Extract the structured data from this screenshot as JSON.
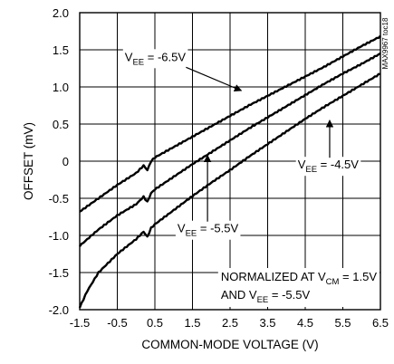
{
  "chart_data": {
    "type": "line",
    "xlabel": "COMMON-MODE VOLTAGE (V)",
    "ylabel": "OFFSET (mV)",
    "xlim": [
      -1.5,
      6.5
    ],
    "ylim": [
      -2.0,
      2.0
    ],
    "x_ticks": [
      "-1.5",
      "-0.5",
      "0.5",
      "1.5",
      "2.5",
      "3.5",
      "4.5",
      "5.5",
      "6.5"
    ],
    "y_ticks": [
      "2.0",
      "1.5",
      "1.0",
      "0.5",
      "0",
      "-0.5",
      "-1.0",
      "-1.5",
      "-2.0"
    ],
    "grid": true,
    "watermark": "MAX9967 toc18",
    "series": [
      {
        "key": "vee_6_5",
        "points": [
          [
            -1.5,
            -0.68
          ],
          [
            -1.0,
            -0.5
          ],
          [
            -0.5,
            -0.32
          ],
          [
            0.0,
            -0.16
          ],
          [
            0.2,
            -0.06
          ],
          [
            0.3,
            -0.12
          ],
          [
            0.4,
            0.0
          ],
          [
            0.5,
            0.05
          ],
          [
            1.0,
            0.19
          ],
          [
            1.5,
            0.33
          ],
          [
            2.0,
            0.47
          ],
          [
            2.5,
            0.61
          ],
          [
            3.0,
            0.75
          ],
          [
            3.5,
            0.88
          ],
          [
            4.0,
            1.01
          ],
          [
            4.5,
            1.14
          ],
          [
            5.0,
            1.27
          ],
          [
            5.5,
            1.41
          ],
          [
            6.0,
            1.55
          ],
          [
            6.5,
            1.68
          ]
        ]
      },
      {
        "key": "vee_5_5",
        "points": [
          [
            -1.5,
            -1.14
          ],
          [
            -1.0,
            -0.92
          ],
          [
            -0.5,
            -0.73
          ],
          [
            0.0,
            -0.58
          ],
          [
            0.2,
            -0.48
          ],
          [
            0.3,
            -0.55
          ],
          [
            0.4,
            -0.43
          ],
          [
            0.5,
            -0.38
          ],
          [
            1.0,
            -0.21
          ],
          [
            1.5,
            -0.04
          ],
          [
            2.0,
            0.12
          ],
          [
            2.5,
            0.28
          ],
          [
            3.0,
            0.44
          ],
          [
            3.5,
            0.59
          ],
          [
            4.0,
            0.74
          ],
          [
            4.5,
            0.89
          ],
          [
            5.0,
            1.04
          ],
          [
            5.5,
            1.18
          ],
          [
            6.0,
            1.31
          ],
          [
            6.5,
            1.45
          ]
        ]
      },
      {
        "key": "vee_4_5",
        "points": [
          [
            -1.5,
            -1.97
          ],
          [
            -1.3,
            -1.75
          ],
          [
            -1.0,
            -1.5
          ],
          [
            -0.5,
            -1.25
          ],
          [
            0.0,
            -1.05
          ],
          [
            0.2,
            -0.95
          ],
          [
            0.3,
            -1.02
          ],
          [
            0.4,
            -0.9
          ],
          [
            0.5,
            -0.85
          ],
          [
            1.0,
            -0.66
          ],
          [
            1.5,
            -0.47
          ],
          [
            2.0,
            -0.29
          ],
          [
            2.5,
            -0.12
          ],
          [
            3.0,
            0.06
          ],
          [
            3.5,
            0.23
          ],
          [
            4.0,
            0.4
          ],
          [
            4.5,
            0.57
          ],
          [
            5.0,
            0.73
          ],
          [
            5.5,
            0.88
          ],
          [
            6.0,
            1.03
          ],
          [
            6.5,
            1.18
          ]
        ]
      }
    ],
    "annotations": [
      {
        "key": "a65",
        "pre": "V",
        "sub": "EE",
        "post": " = -6.5V",
        "x": -0.3,
        "y": 1.35,
        "tx": 2.8,
        "ty": 0.95
      },
      {
        "key": "a45",
        "pre": "V",
        "sub": "EE",
        "post": " = -4.5V",
        "x": 4.3,
        "y": -0.1,
        "tx": 5.15,
        "ty": 0.55
      },
      {
        "key": "a55",
        "pre": "V",
        "sub": "EE",
        "post": " = -5.5V",
        "x": 1.1,
        "y": -0.96,
        "tx": 1.9,
        "ty": 0.08
      }
    ],
    "note": {
      "line1_pre": "NORMALIZED AT V",
      "line1_sub": "CM",
      "line1_post": " = 1.5V",
      "line2_pre": "AND V",
      "line2_sub": "EE",
      "line2_post": " = -5.5V"
    }
  }
}
